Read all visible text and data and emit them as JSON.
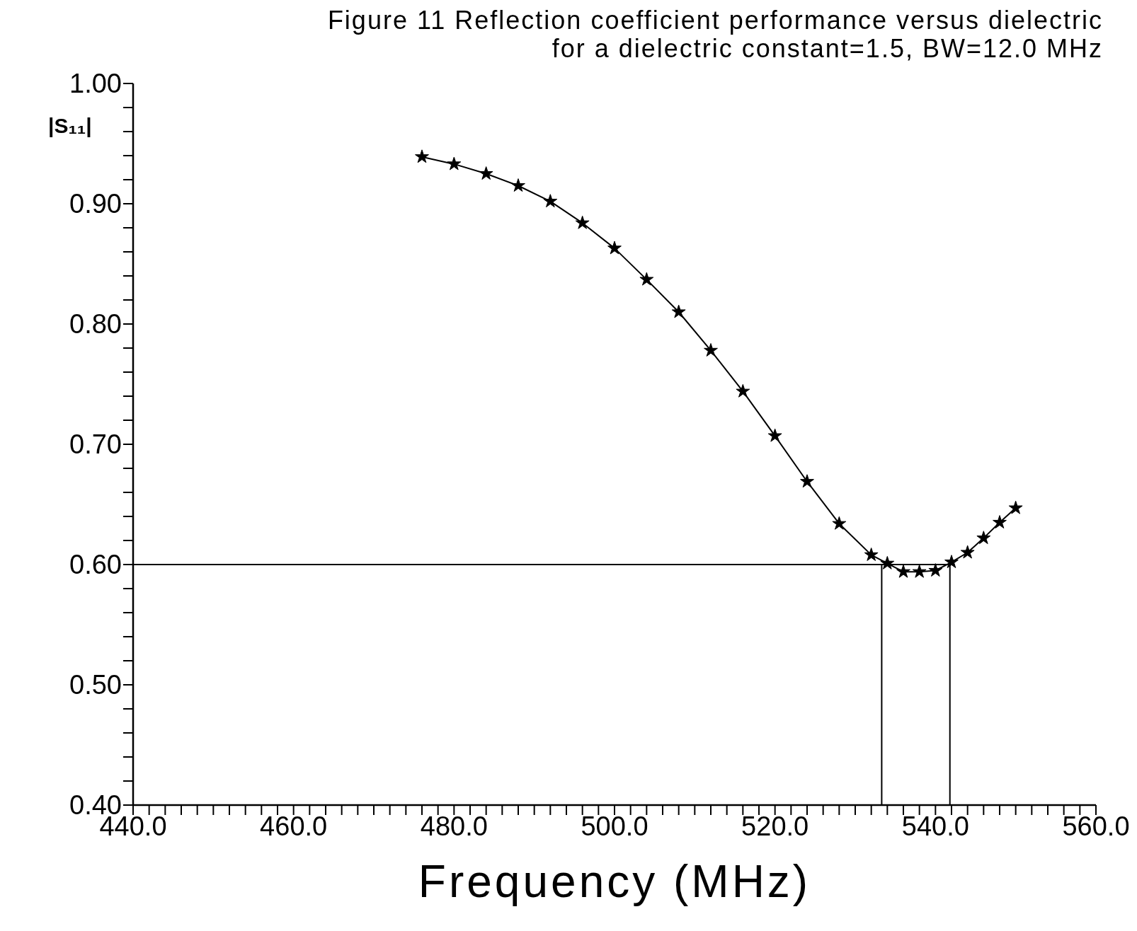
{
  "chart_data": {
    "type": "line",
    "title": "Figure 11 Reflection coefficient performance versus dielectric",
    "subtitle": "for a dielectric constant=1.5, BW=12.0 MHz",
    "xlabel": "Frequency (MHz)",
    "ylabel": "|S₁₁|",
    "x": [
      476,
      480,
      484,
      488,
      492,
      496,
      500,
      504,
      508,
      512,
      516,
      520,
      524,
      528,
      532,
      534,
      536,
      538,
      540,
      542,
      544,
      546,
      548,
      550
    ],
    "series": [
      {
        "color": "#000000",
        "values": [
          0.939,
          0.933,
          0.925,
          0.915,
          0.902,
          0.884,
          0.863,
          0.837,
          0.81,
          0.778,
          0.744,
          0.707,
          0.669,
          0.634,
          0.608,
          0.601,
          0.594,
          0.594,
          0.595,
          0.602,
          0.61,
          0.622,
          0.635,
          0.647
        ]
      }
    ],
    "marker": "star",
    "line_style": "solid",
    "grid": false,
    "legend": false,
    "xlim": [
      440,
      560
    ],
    "ylim": [
      0.4,
      1.0
    ],
    "xticks": [
      {
        "value": 440,
        "label": "440.0"
      },
      {
        "value": 442,
        "label": null
      },
      {
        "value": 444,
        "label": null
      },
      {
        "value": 446,
        "label": null
      },
      {
        "value": 448,
        "label": null
      },
      {
        "value": 450,
        "label": null
      },
      {
        "value": 452,
        "label": null
      },
      {
        "value": 454,
        "label": null
      },
      {
        "value": 456,
        "label": null
      },
      {
        "value": 458,
        "label": null
      },
      {
        "value": 460,
        "label": "460.0"
      },
      {
        "value": 462,
        "label": null
      },
      {
        "value": 464,
        "label": null
      },
      {
        "value": 466,
        "label": null
      },
      {
        "value": 468,
        "label": null
      },
      {
        "value": 470,
        "label": null
      },
      {
        "value": 472,
        "label": null
      },
      {
        "value": 474,
        "label": null
      },
      {
        "value": 476,
        "label": null
      },
      {
        "value": 478,
        "label": null
      },
      {
        "value": 480,
        "label": "480.0"
      },
      {
        "value": 482,
        "label": null
      },
      {
        "value": 484,
        "label": null
      },
      {
        "value": 486,
        "label": null
      },
      {
        "value": 488,
        "label": null
      },
      {
        "value": 490,
        "label": null
      },
      {
        "value": 492,
        "label": null
      },
      {
        "value": 494,
        "label": null
      },
      {
        "value": 496,
        "label": null
      },
      {
        "value": 498,
        "label": null
      },
      {
        "value": 500,
        "label": "500.0"
      },
      {
        "value": 502,
        "label": null
      },
      {
        "value": 504,
        "label": null
      },
      {
        "value": 506,
        "label": null
      },
      {
        "value": 508,
        "label": null
      },
      {
        "value": 510,
        "label": null
      },
      {
        "value": 512,
        "label": null
      },
      {
        "value": 514,
        "label": null
      },
      {
        "value": 516,
        "label": null
      },
      {
        "value": 518,
        "label": null
      },
      {
        "value": 520,
        "label": "520.0"
      },
      {
        "value": 522,
        "label": null
      },
      {
        "value": 524,
        "label": null
      },
      {
        "value": 526,
        "label": null
      },
      {
        "value": 528,
        "label": null
      },
      {
        "value": 530,
        "label": null
      },
      {
        "value": 532,
        "label": null
      },
      {
        "value": 534,
        "label": null
      },
      {
        "value": 536,
        "label": null
      },
      {
        "value": 538,
        "label": null
      },
      {
        "value": 540,
        "label": "540.0"
      },
      {
        "value": 542,
        "label": null
      },
      {
        "value": 544,
        "label": null
      },
      {
        "value": 546,
        "label": null
      },
      {
        "value": 548,
        "label": null
      },
      {
        "value": 550,
        "label": null
      },
      {
        "value": 552,
        "label": null
      },
      {
        "value": 554,
        "label": null
      },
      {
        "value": 556,
        "label": null
      },
      {
        "value": 558,
        "label": null
      },
      {
        "value": 560,
        "label": "560.0"
      }
    ],
    "yticks": [
      {
        "value": 0.4,
        "label": "0.40"
      },
      {
        "value": 0.42,
        "label": null
      },
      {
        "value": 0.44,
        "label": null
      },
      {
        "value": 0.46,
        "label": null
      },
      {
        "value": 0.48,
        "label": null
      },
      {
        "value": 0.5,
        "label": "0.50"
      },
      {
        "value": 0.52,
        "label": null
      },
      {
        "value": 0.54,
        "label": null
      },
      {
        "value": 0.56,
        "label": null
      },
      {
        "value": 0.58,
        "label": null
      },
      {
        "value": 0.6,
        "label": "0.60"
      },
      {
        "value": 0.62,
        "label": null
      },
      {
        "value": 0.64,
        "label": null
      },
      {
        "value": 0.66,
        "label": null
      },
      {
        "value": 0.68,
        "label": null
      },
      {
        "value": 0.7,
        "label": "0.70"
      },
      {
        "value": 0.72,
        "label": null
      },
      {
        "value": 0.74,
        "label": null
      },
      {
        "value": 0.76,
        "label": null
      },
      {
        "value": 0.78,
        "label": null
      },
      {
        "value": 0.8,
        "label": "0.80"
      },
      {
        "value": 0.82,
        "label": null
      },
      {
        "value": 0.84,
        "label": null
      },
      {
        "value": 0.86,
        "label": null
      },
      {
        "value": 0.88,
        "label": null
      },
      {
        "value": 0.9,
        "label": "0.90"
      },
      {
        "value": 0.92,
        "label": null
      },
      {
        "value": 0.94,
        "label": null
      },
      {
        "value": 0.96,
        "label": null
      },
      {
        "value": 0.98,
        "label": null
      },
      {
        "value": 1.0,
        "label": "1.00"
      }
    ],
    "ref_lines": [
      {
        "axis": "y",
        "value": 0.6,
        "color": "#000000"
      },
      {
        "axis": "x",
        "value": 533.3,
        "color": "#000000"
      },
      {
        "axis": "x",
        "value": 541.8,
        "color": "#000000"
      }
    ]
  }
}
